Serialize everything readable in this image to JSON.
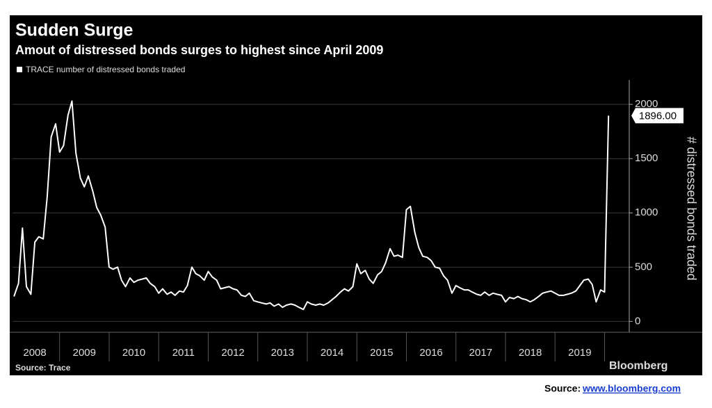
{
  "chart_data": {
    "type": "line",
    "title": "Sudden Surge",
    "subtitle": "Amout of distressed bonds surges to highest since April 2009",
    "y_label": "# distressed bonds traded",
    "source": "Source: Trace",
    "brand": "Bloomberg",
    "annotation": {
      "value": 1896,
      "label": "1896.00"
    },
    "x": [
      2008.08,
      2008.17,
      2008.25,
      2008.33,
      2008.42,
      2008.5,
      2008.58,
      2008.67,
      2008.75,
      2008.83,
      2008.92,
      2009.0,
      2009.08,
      2009.17,
      2009.25,
      2009.33,
      2009.42,
      2009.5,
      2009.58,
      2009.67,
      2009.75,
      2009.83,
      2009.92,
      2010.0,
      2010.08,
      2010.17,
      2010.25,
      2010.33,
      2010.42,
      2010.5,
      2010.58,
      2010.67,
      2010.75,
      2010.83,
      2010.92,
      2011.0,
      2011.08,
      2011.17,
      2011.25,
      2011.33,
      2011.42,
      2011.5,
      2011.58,
      2011.67,
      2011.75,
      2011.83,
      2011.92,
      2012.0,
      2012.08,
      2012.17,
      2012.25,
      2012.33,
      2012.42,
      2012.5,
      2012.58,
      2012.67,
      2012.75,
      2012.83,
      2012.92,
      2013.0,
      2013.08,
      2013.17,
      2013.25,
      2013.33,
      2013.42,
      2013.5,
      2013.58,
      2013.67,
      2013.75,
      2013.83,
      2013.92,
      2014.0,
      2014.08,
      2014.17,
      2014.25,
      2014.33,
      2014.42,
      2014.5,
      2014.58,
      2014.67,
      2014.75,
      2014.83,
      2014.92,
      2015.0,
      2015.08,
      2015.17,
      2015.25,
      2015.33,
      2015.42,
      2015.5,
      2015.58,
      2015.67,
      2015.75,
      2015.83,
      2015.92,
      2016.0,
      2016.08,
      2016.17,
      2016.25,
      2016.33,
      2016.42,
      2016.5,
      2016.58,
      2016.67,
      2016.75,
      2016.83,
      2016.92,
      2017.0,
      2017.08,
      2017.17,
      2017.25,
      2017.33,
      2017.42,
      2017.5,
      2017.58,
      2017.67,
      2017.75,
      2017.83,
      2017.92,
      2018.0,
      2018.08,
      2018.17,
      2018.25,
      2018.33,
      2018.42,
      2018.5,
      2018.58,
      2018.67,
      2018.75,
      2018.83,
      2018.92,
      2019.0,
      2019.08,
      2019.17,
      2019.25,
      2019.33,
      2019.42,
      2019.5,
      2019.58,
      2019.67,
      2019.75,
      2019.83,
      2019.92,
      2020.0,
      2020.08
    ],
    "series": [
      {
        "name": "TRACE number of distressed bonds traded",
        "color": "#ffffff",
        "values": [
          230,
          350,
          860,
          320,
          250,
          730,
          780,
          760,
          1150,
          1700,
          1820,
          1560,
          1620,
          1900,
          2030,
          1550,
          1320,
          1240,
          1340,
          1200,
          1050,
          980,
          870,
          500,
          480,
          500,
          380,
          320,
          400,
          360,
          380,
          390,
          400,
          350,
          320,
          260,
          300,
          250,
          270,
          240,
          280,
          270,
          330,
          500,
          440,
          420,
          380,
          460,
          410,
          380,
          300,
          310,
          320,
          300,
          290,
          240,
          230,
          260,
          190,
          180,
          170,
          160,
          170,
          140,
          160,
          130,
          150,
          160,
          150,
          130,
          110,
          180,
          160,
          150,
          160,
          150,
          170,
          200,
          230,
          270,
          300,
          280,
          320,
          530,
          440,
          470,
          390,
          350,
          430,
          460,
          540,
          670,
          600,
          610,
          590,
          1030,
          1060,
          820,
          680,
          600,
          590,
          560,
          500,
          490,
          420,
          380,
          260,
          330,
          310,
          290,
          290,
          270,
          250,
          240,
          270,
          240,
          260,
          250,
          240,
          180,
          220,
          210,
          230,
          210,
          200,
          180,
          200,
          230,
          260,
          270,
          280,
          260,
          240,
          240,
          250,
          260,
          280,
          330,
          380,
          390,
          340,
          180,
          290,
          270,
          1896
        ]
      }
    ],
    "xlim": [
      2008.05,
      2020.4
    ],
    "xticks": [
      2008,
      2009,
      2010,
      2011,
      2012,
      2013,
      2014,
      2015,
      2016,
      2017,
      2018,
      2019
    ],
    "ylim": [
      -100,
      2225
    ],
    "yticks": [
      0,
      500,
      1000,
      1500,
      2000
    ],
    "grid": true
  },
  "footer": {
    "label": "Source:",
    "link": "www.bloomberg.com"
  }
}
